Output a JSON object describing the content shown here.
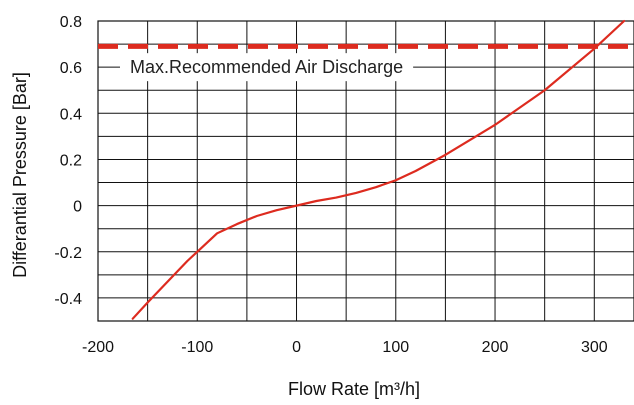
{
  "chart_data": {
    "type": "line",
    "title": "",
    "xlabel": "Flow Rate [m³/h]",
    "ylabel": "Differantial Pressure [Bar]",
    "xlim": [
      -200,
      340
    ],
    "ylim": [
      -0.5,
      0.8
    ],
    "grid": true,
    "x_ticks": [
      -200,
      -100,
      0,
      100,
      200,
      300
    ],
    "x_tick_labels": [
      "-200",
      "-100",
      "0",
      "100",
      "200",
      "300"
    ],
    "y_ticks": [
      -0.4,
      -0.2,
      0,
      0.2,
      0.4,
      0.6,
      0.8
    ],
    "y_tick_labels": [
      "-0.4",
      "-0.2",
      "0",
      "0.2",
      "0.4",
      "0.6",
      "0.8"
    ],
    "series": [
      {
        "color": "#dd2b1f",
        "x": [
          -165,
          -150,
          -130,
          -110,
          -100,
          -90,
          -80,
          -60,
          -40,
          -20,
          0,
          20,
          40,
          60,
          80,
          100,
          120,
          150,
          200,
          250,
          300,
          330
        ],
        "y": [
          -0.49,
          -0.42,
          -0.33,
          -0.24,
          -0.2,
          -0.16,
          -0.12,
          -0.08,
          -0.045,
          -0.02,
          0.0,
          0.02,
          0.035,
          0.055,
          0.08,
          0.11,
          0.15,
          0.22,
          0.35,
          0.5,
          0.68,
          0.8
        ]
      }
    ],
    "reference_line": {
      "y": 0.69,
      "color": "#dd2b1f",
      "style": "dashed",
      "label": "Max.Recommended Air Discharge"
    }
  }
}
